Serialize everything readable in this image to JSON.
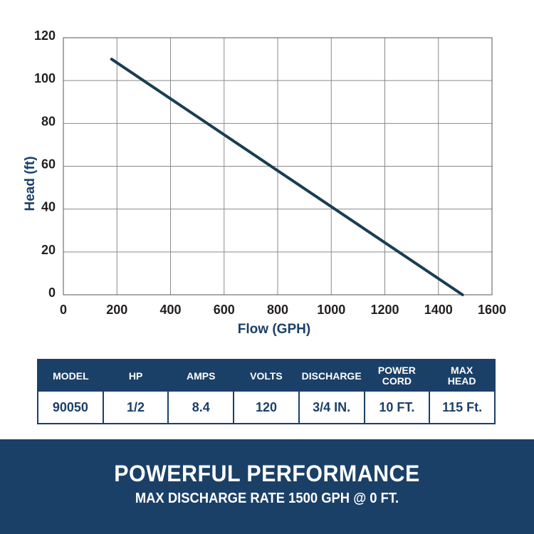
{
  "chart_data": {
    "type": "line",
    "title": "",
    "xlabel": "Flow (GPH)",
    "ylabel": "Head (ft)",
    "xlim": [
      0,
      1600
    ],
    "ylim": [
      0,
      120
    ],
    "x_ticks": [
      "0",
      "200",
      "400",
      "600",
      "800",
      "1000",
      "1200",
      "1400",
      "1600"
    ],
    "y_ticks": [
      "120",
      "100",
      "80",
      "60",
      "40",
      "20",
      "0"
    ],
    "grid": true,
    "series": [
      {
        "x": [
          180,
          1490
        ],
        "y": [
          110,
          0
        ],
        "color": "#1a3d52"
      }
    ]
  },
  "spec_table": {
    "headers": [
      "MODEL",
      "HP",
      "AMPS",
      "VOLTS",
      "DISCHARGE",
      "POWER\nCORD",
      "MAX\nHEAD"
    ],
    "values": [
      "90050",
      "1/2",
      "8.4",
      "120",
      "3/4 IN.",
      "10 FT.",
      "115 Ft."
    ]
  },
  "banner": {
    "title": "POWERFUL PERFORMANCE",
    "subtitle": "MAX DISCHARGE RATE 1500 GPH @ 0 FT."
  },
  "colors": {
    "navy": "#1b4068",
    "curve": "#1a3d52",
    "grid": "#8a8a8a"
  }
}
